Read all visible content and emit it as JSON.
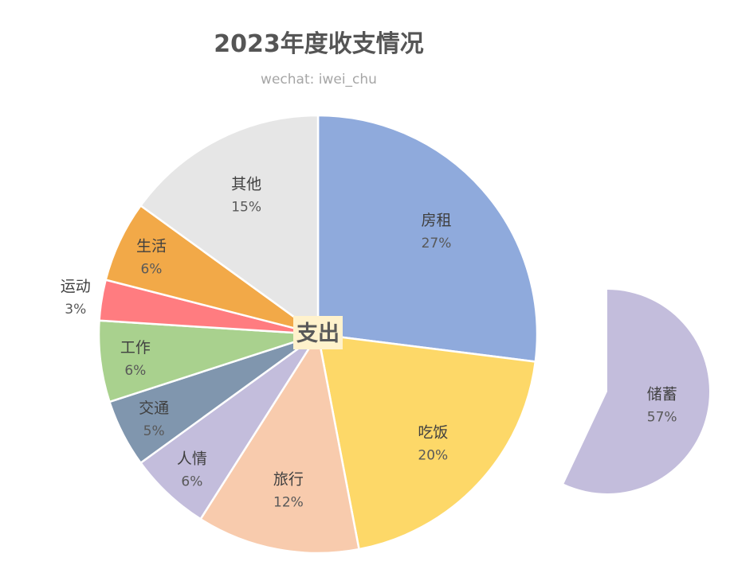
{
  "chart_data": {
    "type": "pie",
    "title": "2023年度收支情况",
    "subtitle": "wechat: iwei_chu",
    "center_label": "支出",
    "legend": "none",
    "slices": [
      {
        "label": "房租",
        "value": 27,
        "display": "27%",
        "color": "#8faadc"
      },
      {
        "label": "吃饭",
        "value": 20,
        "display": "20%",
        "color": "#fdd868"
      },
      {
        "label": "旅行",
        "value": 12,
        "display": "12%",
        "color": "#f8cbad"
      },
      {
        "label": "人情",
        "value": 6,
        "display": "6%",
        "color": "#c3bddc"
      },
      {
        "label": "交通",
        "value": 5,
        "display": "5%",
        "color": "#8096ae"
      },
      {
        "label": "工作",
        "value": 6,
        "display": "6%",
        "color": "#a9d18e"
      },
      {
        "label": "运动",
        "value": 3,
        "display": "3%",
        "color": "#ff7c80"
      },
      {
        "label": "生活",
        "value": 6,
        "display": "6%",
        "color": "#f2a948"
      },
      {
        "label": "其他",
        "value": 15,
        "display": "15%",
        "color": "#e6e6e6"
      }
    ],
    "separate_slice": {
      "label": "储蓄",
      "value": 57,
      "display": "57%",
      "color": "#c3bddc"
    }
  }
}
